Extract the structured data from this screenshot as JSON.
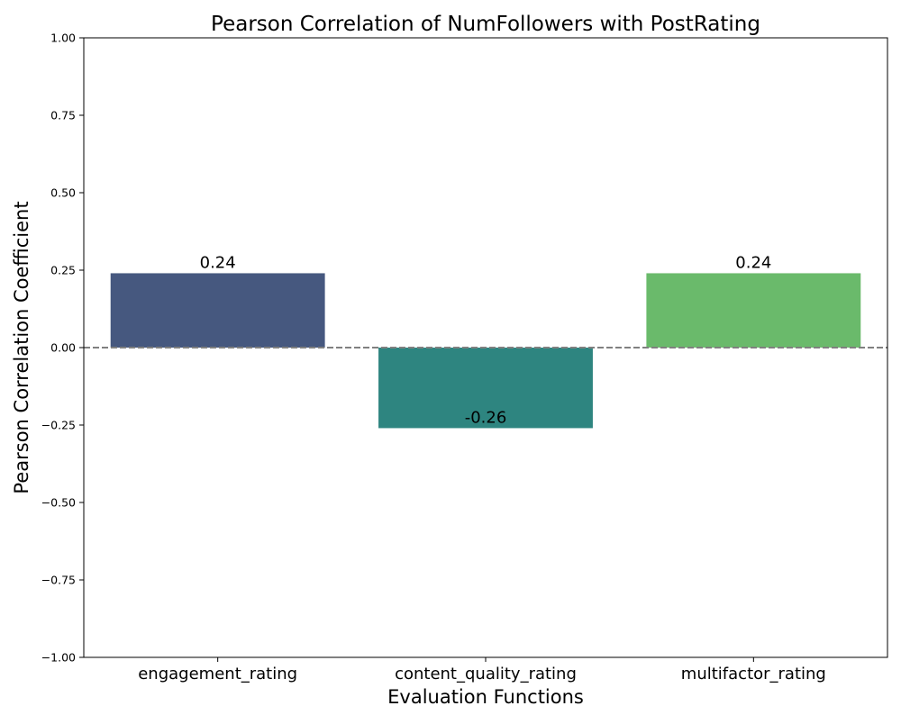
{
  "chart_data": {
    "type": "bar",
    "title": "Pearson Correlation of NumFollowers with PostRating",
    "xlabel": "Evaluation Functions",
    "ylabel": "Pearson Correlation Coefficient",
    "categories": [
      "engagement_rating",
      "content_quality_rating",
      "multifactor_rating"
    ],
    "values": [
      0.24,
      -0.26,
      0.24
    ],
    "value_labels": [
      "0.24",
      "-0.26",
      "0.24"
    ],
    "colors": [
      "#46587f",
      "#2e8580",
      "#6aba6b"
    ],
    "ylim": [
      -1.0,
      1.0
    ],
    "yticks": [
      -1.0,
      -0.75,
      -0.5,
      -0.25,
      0.0,
      0.25,
      0.5,
      0.75,
      1.0
    ],
    "ytick_labels": [
      "−1.00",
      "−0.75",
      "−0.50",
      "−0.25",
      "0.00",
      "0.25",
      "0.50",
      "0.75",
      "1.00"
    ],
    "reference_line": {
      "y": 0.0,
      "style": "dashed",
      "color": "#808080"
    },
    "grid": false,
    "legend": "none"
  }
}
